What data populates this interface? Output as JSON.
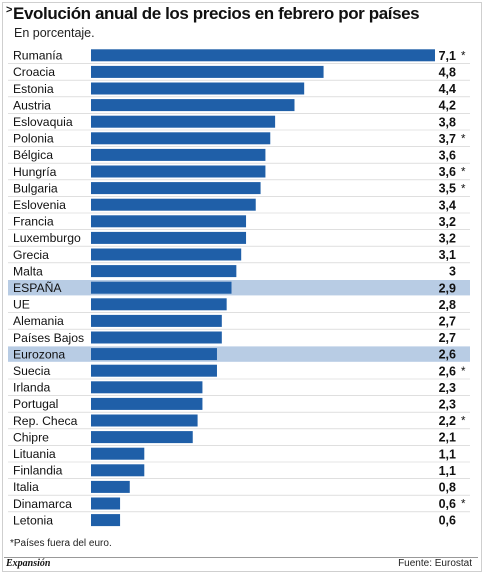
{
  "header": {
    "caret": ">",
    "title": "Evolución anual de los precios en febrero por países",
    "subtitle": "En porcentaje."
  },
  "footer": {
    "note": "*Países fuera del euro.",
    "brand": "Expansión",
    "source": "Fuente: Eurostat"
  },
  "colors": {
    "bar": "#1f5fa8",
    "highlight": "#b8cce4",
    "separator": "#cccccc"
  },
  "chart_data": {
    "type": "bar",
    "orientation": "horizontal",
    "title": "Evolución anual de los precios en febrero por países",
    "subtitle": "En porcentaje.",
    "xlim": [
      0,
      7.1
    ],
    "grid": false,
    "legend": "none",
    "categories": [
      "Rumanía",
      "Croacia",
      "Estonia",
      "Austria",
      "Eslovaquia",
      "Polonia",
      "Bélgica",
      "Hungría",
      "Bulgaria",
      "Eslovenia",
      "Francia",
      "Luxemburgo",
      "Grecia",
      "Malta",
      "ESPAÑA",
      "UE",
      "Alemania",
      "Países Bajos",
      "Eurozona",
      "Suecia",
      "Irlanda",
      "Portugal",
      "Rep. Checa",
      "Chipre",
      "Lituania",
      "Finlandia",
      "Italia",
      "Dinamarca",
      "Letonia"
    ],
    "values": [
      7.1,
      4.8,
      4.4,
      4.2,
      3.8,
      3.7,
      3.6,
      3.6,
      3.5,
      3.4,
      3.2,
      3.2,
      3.1,
      3,
      2.9,
      2.8,
      2.7,
      2.7,
      2.6,
      2.6,
      2.3,
      2.3,
      2.2,
      2.1,
      1.1,
      1.1,
      0.8,
      0.6,
      0.6
    ],
    "value_labels": [
      "7,1",
      "4,8",
      "4,4",
      "4,2",
      "3,8",
      "3,7",
      "3,6",
      "3,6",
      "3,5",
      "3,4",
      "3,2",
      "3,2",
      "3,1",
      "3",
      "2,9",
      "2,8",
      "2,7",
      "2,7",
      "2,6",
      "2,6",
      "2,3",
      "2,3",
      "2,2",
      "2,1",
      "1,1",
      "1,1",
      "0,8",
      "0,6",
      "0,6"
    ],
    "non_euro_mark": [
      "*",
      "",
      "",
      "",
      "",
      "*",
      "",
      "*",
      "*",
      "",
      "",
      "",
      "",
      "",
      "",
      "",
      "",
      "",
      "",
      "*",
      "",
      "",
      "*",
      "",
      "",
      "",
      "",
      "*",
      ""
    ],
    "highlighted": [
      "ESPAÑA",
      "Eurozona"
    ]
  }
}
